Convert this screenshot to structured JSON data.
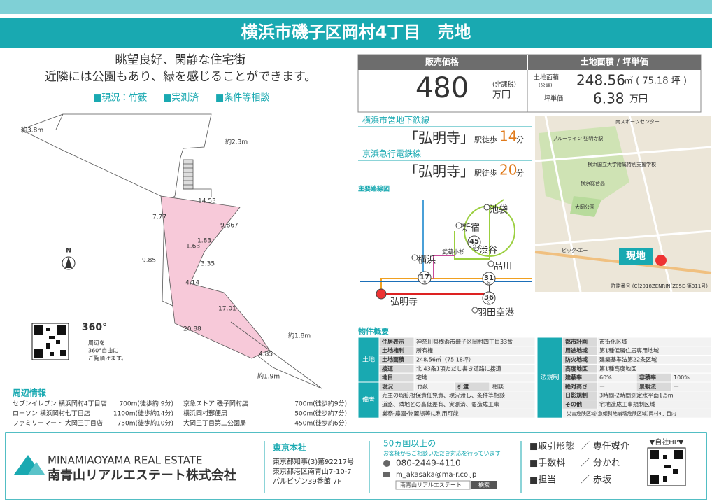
{
  "header": {
    "title": "横浜市磯子区岡村4丁目　売地"
  },
  "intro": {
    "lines": [
      "眺望良好、閑静な住宅街",
      "近隣には公園もあり、緑を感じることができます。"
    ],
    "tags": [
      "■現況：竹薮",
      "■実測済",
      "■条件等相談"
    ]
  },
  "lot_plan": {
    "north": "N",
    "labels": [
      "約3.8m",
      "約2.3m",
      "14.53",
      "9.867",
      "7.77",
      "9.85",
      "1.63",
      "1.83",
      "3.35",
      "4.14",
      "17.01",
      "20.88",
      "4.85",
      "約1.8m",
      "約1.9m"
    ]
  },
  "view360": {
    "badge": "360°",
    "text": [
      "周辺を",
      "360°自由に",
      "ご覧頂けます。"
    ]
  },
  "nearby": {
    "title": "周辺情報",
    "items": [
      {
        "name": "セブンイレブン 横浜岡村4丁目店",
        "distance": "700m(徒歩約 9分)"
      },
      {
        "name": "ローソン 横浜岡村七丁目店",
        "distance": "1100m(徒歩約14分)"
      },
      {
        "name": "ファミリーマート 大岡三丁目店",
        "distance": "750m(徒歩約10分)"
      },
      {
        "name": "京急ストア 磯子岡村店",
        "distance": "700m(徒歩約9分)"
      },
      {
        "name": "横浜岡村郵便局",
        "distance": "500m(徒歩約7分)"
      },
      {
        "name": "大岡三丁目第二公園局",
        "distance": "450m(徒歩約6分)"
      }
    ]
  },
  "price": {
    "header": "販売価格",
    "value": 480,
    "tax": "(非課税)",
    "unit": "万円"
  },
  "land": {
    "header": "土地面積 / 坪単価",
    "area_label": "土地面積",
    "area_note": "(公簿)",
    "area": 248.56,
    "area_unit": "㎡ ( 75.18 坪 )",
    "unit_price_label": "坪単価",
    "unit_price": 6.38,
    "unit_price_unit": "万円"
  },
  "access": [
    {
      "line": "横浜市営地下鉄線",
      "station": "「弘明寺」",
      "walk": "駅徒歩",
      "minutes": 14,
      "unit": "分"
    },
    {
      "line": "京浜急行電鉄線",
      "station": "「弘明寺」",
      "walk": "駅徒歩",
      "minutes": 20,
      "unit": "分"
    }
  ],
  "route_map": {
    "title": "主要路線図",
    "stations": [
      "池袋",
      "新宿",
      "渋谷",
      "品川",
      "横浜",
      "弘明寺",
      "羽田空港",
      "武蔵小杉"
    ],
    "times": [
      "45",
      "17",
      "31",
      "36"
    ],
    "time_unit": "分"
  },
  "map": {
    "marker": "現地",
    "copyright": "許諾番号 (C)2018ZENRIN(Z05E-第311号)",
    "labels": [
      "南スポーツセンター",
      "ブルーライン 弘明寺駅",
      "横浜国立大学附属特別支援学校",
      "横浜総合高",
      "大岡公園",
      "ビッグ・エー"
    ]
  },
  "overview": {
    "title": "物件概要",
    "land": {
      "category": "土地",
      "rows": [
        [
          "住居表示",
          "神奈川県横浜市磯子区岡村四丁目33番"
        ],
        [
          "土地権利",
          "所有権"
        ],
        [
          "土地面積",
          "248.56㎡（75.18坪）"
        ],
        [
          "接道",
          "北 43条1項ただし書き道路に接道"
        ],
        [
          "地目",
          "宅地"
        ]
      ]
    },
    "remarks": {
      "category": "備考",
      "status": [
        "現況",
        "竹薮",
        "引渡",
        "相談"
      ],
      "notes": [
        "売主の瑕疵担保責任免責、現況渡し、条件等相談",
        "道路、隣地との高低差有、実測済、要造成工事",
        "業務・農園・物置場等に利用可能"
      ]
    },
    "regulation": {
      "category": "法規制",
      "rows": [
        [
          "都市計画",
          "市街化区域"
        ],
        [
          "用途地域",
          "第1種低層住居専用地域"
        ],
        [
          "防火地域",
          "建築基準法第22条区域"
        ],
        [
          "高度地区",
          "第1種高度地区"
        ],
        [
          "建蔽率",
          "60%",
          "容積率",
          "100%"
        ],
        [
          "絶対高さ",
          "ー",
          "景観法",
          "ー"
        ],
        [
          "日影規制",
          "3時間-2時間測定水平面1.5m"
        ],
        [
          "その他",
          "宅地造成工事規制区域"
        ]
      ],
      "note": "災害危険区域(急傾斜地崩壊危険区域)岡村4丁目内"
    }
  },
  "footer": {
    "company_en": "MINAMIAOYAMA REAL ESTATE",
    "company": "南青山リアルエステート株式会社",
    "office": {
      "title": "東京本社",
      "lines": [
        "東京都知事(3)第92217号",
        "東京都港区南青山7-10-7",
        "パルビゾン39番館 7F"
      ]
    },
    "contact": {
      "lead": "50ヵ国以上の",
      "sub": "お客様からご相談いただき対応を行っています",
      "phone": "080-2449-4110",
      "email": "m_akasaka@ma-r.co.jp",
      "search": "南青山リアルエステート",
      "search_button": "検索"
    },
    "terms": [
      [
        "■取引形態",
        "／",
        "専任媒介"
      ],
      [
        "■手数料",
        "／",
        "分かれ"
      ],
      [
        "■担当",
        "／",
        "赤坂"
      ]
    ],
    "hp": "▼自社HP▼"
  }
}
